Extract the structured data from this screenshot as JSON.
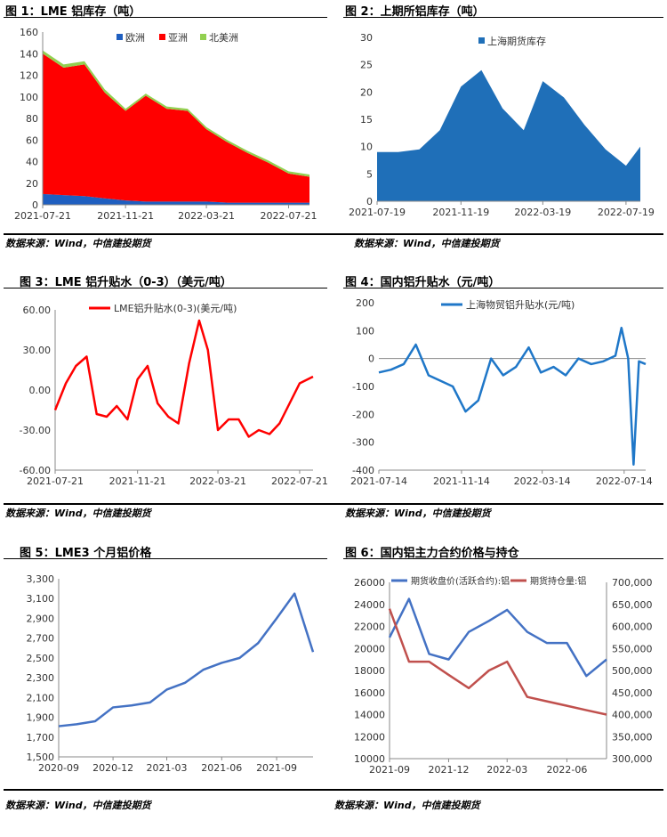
{
  "figures": [
    {
      "title": "图 1：LME 铝库存（吨）",
      "source": "数据来源：Wind，中信建投期货"
    },
    {
      "title": "图 2：上期所铝库存（吨）",
      "source": "数据来源：Wind，中信建投期货"
    },
    {
      "title": "图 3：LME 铝升贴水（0-3）（美元/吨）",
      "source": "数据来源：Wind，中信建投期货"
    },
    {
      "title": "图 4：国内铝升贴水（元/吨）",
      "source": "数据来源：Wind，中信建投期货"
    },
    {
      "title": "图 5：LME3 个月铝价格",
      "source": "数据来源：Wind，中信建投期货"
    },
    {
      "title": "图 6：国内铝主力合约价格与持仓",
      "source": "数据来源：Wind，中信建投期货"
    }
  ],
  "colors": {
    "eu": "#1F5FC0",
    "asia": "#FF0000",
    "na": "#92D050",
    "shfe": "#1F6FB8",
    "lme_spread": "#FF0000",
    "dom_spread": "#1F77C8",
    "lme3m": "#4472C4",
    "price": "#4472C4",
    "oi": "#C0504D"
  },
  "chart_data": [
    {
      "type": "area",
      "stacked": true,
      "ylim": [
        0,
        160
      ],
      "yticks": [
        "0",
        "20",
        "40",
        "60",
        "80",
        "100",
        "120",
        "140",
        "160"
      ],
      "xticklabels": [
        "2021-07-21",
        "2021-11-21",
        "2022-03-21",
        "2022-07-21"
      ],
      "x": [
        "2021-07-21",
        "2021-08-21",
        "2021-09-21",
        "2021-10-21",
        "2021-11-21",
        "2021-12-21",
        "2022-01-21",
        "2022-02-21",
        "2022-03-21",
        "2022-04-21",
        "2022-05-21",
        "2022-06-21",
        "2022-07-21",
        "2022-08-21"
      ],
      "series": [
        {
          "name": "欧洲",
          "values": [
            10,
            9,
            8,
            6,
            4,
            3,
            3,
            3,
            3,
            2,
            2,
            2,
            2,
            2
          ]
        },
        {
          "name": "亚洲",
          "values": [
            130,
            118,
            122,
            98,
            83,
            98,
            86,
            84,
            67,
            56,
            46,
            37,
            27,
            24
          ]
        },
        {
          "name": "北美洲",
          "values": [
            3,
            3,
            3,
            3,
            2,
            2,
            2,
            2,
            2,
            2,
            2,
            2,
            2,
            2
          ]
        }
      ]
    },
    {
      "type": "area",
      "ylim": [
        0,
        30
      ],
      "yticks": [
        "0",
        "5",
        "10",
        "15",
        "20",
        "25",
        "30"
      ],
      "xticklabels": [
        "2021-07-19",
        "2021-11-19",
        "2022-03-19",
        "2022-07-19"
      ],
      "x": [
        "2021-07-19",
        "2021-08-19",
        "2021-09-19",
        "2021-10-19",
        "2021-11-19",
        "2021-12-19",
        "2022-01-19",
        "2022-02-19",
        "2022-03-19",
        "2022-04-19",
        "2022-05-19",
        "2022-06-19",
        "2022-07-19",
        "2022-08-09"
      ],
      "series": [
        {
          "name": "上海期货库存",
          "values": [
            9,
            9,
            9.5,
            13,
            21,
            24,
            17,
            13,
            22,
            19,
            14,
            9.5,
            6.5,
            10
          ]
        }
      ]
    },
    {
      "type": "line",
      "ylim": [
        -60,
        60
      ],
      "yticks": [
        "-60.00",
        "-30.00",
        "0.00",
        "30.00",
        "60.00"
      ],
      "xticklabels": [
        "2021-07-21",
        "2021-11-21",
        "2022-03-21",
        "2022-07-21"
      ],
      "x": [
        "2021-07-21",
        "2021-08-06",
        "2021-08-21",
        "2021-09-06",
        "2021-09-21",
        "2021-10-06",
        "2021-10-21",
        "2021-11-06",
        "2021-11-21",
        "2021-12-06",
        "2021-12-21",
        "2022-01-06",
        "2022-01-21",
        "2022-02-06",
        "2022-02-21",
        "2022-03-06",
        "2022-03-21",
        "2022-04-06",
        "2022-04-21",
        "2022-05-06",
        "2022-05-21",
        "2022-06-06",
        "2022-06-21",
        "2022-07-06",
        "2022-07-21",
        "2022-08-10"
      ],
      "series": [
        {
          "name": "LME铝升贴水(0-3)(美元/吨)",
          "values": [
            -15,
            5,
            18,
            25,
            -18,
            -20,
            -12,
            -22,
            8,
            18,
            -10,
            -20,
            -25,
            20,
            52,
            30,
            -30,
            -22,
            -22,
            -35,
            -30,
            -33,
            -25,
            -10,
            5,
            10
          ]
        }
      ]
    },
    {
      "type": "line",
      "ylim": [
        -400,
        200
      ],
      "yticks": [
        "-400",
        "-300",
        "-200",
        "-100",
        "0",
        "100",
        "200"
      ],
      "xticklabels": [
        "2021-07-14",
        "2021-11-14",
        "2022-03-14",
        "2022-07-14"
      ],
      "x": [
        "2021-07-14",
        "2021-08-01",
        "2021-08-20",
        "2021-09-07",
        "2021-09-26",
        "2021-10-14",
        "2021-11-01",
        "2021-11-20",
        "2021-12-09",
        "2021-12-28",
        "2022-01-15",
        "2022-02-03",
        "2022-02-22",
        "2022-03-12",
        "2022-03-31",
        "2022-04-18",
        "2022-05-07",
        "2022-05-26",
        "2022-06-13",
        "2022-07-01",
        "2022-07-10",
        "2022-07-20",
        "2022-07-28",
        "2022-08-05",
        "2022-08-15"
      ],
      "series": [
        {
          "name": "上海物贸铝升贴水(元/吨)",
          "values": [
            -50,
            -40,
            -20,
            50,
            -60,
            -80,
            -100,
            -190,
            -150,
            0,
            -60,
            -30,
            40,
            -50,
            -30,
            -60,
            0,
            -20,
            -10,
            10,
            110,
            0,
            -380,
            -10,
            -20
          ]
        }
      ]
    },
    {
      "type": "line",
      "ylim": [
        1500,
        3300
      ],
      "yticks": [
        "1,500",
        "1,700",
        "1,900",
        "2,100",
        "2,300",
        "2,500",
        "2,700",
        "2,900",
        "3,100",
        "3,300"
      ],
      "xticklabels": [
        "2020-09",
        "2020-12",
        "2021-03",
        "2021-06",
        "2021-09"
      ],
      "x": [
        "2020-09",
        "2020-10",
        "2020-11",
        "2020-12",
        "2021-01",
        "2021-02",
        "2021-03",
        "2021-04",
        "2021-05",
        "2021-06",
        "2021-07",
        "2021-08",
        "2021-09",
        "2021-10",
        "2021-11"
      ],
      "series": [
        {
          "name": "LME3个月铝价格",
          "values": [
            1810,
            1830,
            1860,
            2000,
            2020,
            2050,
            2180,
            2250,
            2380,
            2450,
            2500,
            2650,
            2900,
            3150,
            2560
          ]
        }
      ]
    },
    {
      "type": "line",
      "ylim": [
        10000,
        26000
      ],
      "yticks": [
        "10000",
        "12000",
        "14000",
        "16000",
        "18000",
        "20000",
        "22000",
        "24000",
        "26000"
      ],
      "y2lim": [
        300000,
        700000
      ],
      "y2ticks": [
        "300,000",
        "350,000",
        "400,000",
        "450,000",
        "500,000",
        "550,000",
        "600,000",
        "650,000",
        "700,000"
      ],
      "xticklabels": [
        "2021-09",
        "2021-12",
        "2022-03",
        "2022-06"
      ],
      "x": [
        "2021-09",
        "2021-10",
        "2021-11",
        "2021-12",
        "2022-01",
        "2022-02",
        "2022-03",
        "2022-04",
        "2022-05",
        "2022-06",
        "2022-07",
        "2022-08"
      ],
      "series": [
        {
          "name": "期货收盘价(活跃合约):铝",
          "axis": "left",
          "values": [
            21000,
            24500,
            19500,
            19000,
            21500,
            22500,
            23500,
            21500,
            20500,
            20500,
            17500,
            19000
          ]
        },
        {
          "name": "期货持仓量:铝",
          "axis": "right",
          "values": [
            640000,
            520000,
            520000,
            490000,
            460000,
            500000,
            520000,
            440000,
            430000,
            420000,
            410000,
            400000
          ]
        }
      ]
    }
  ]
}
